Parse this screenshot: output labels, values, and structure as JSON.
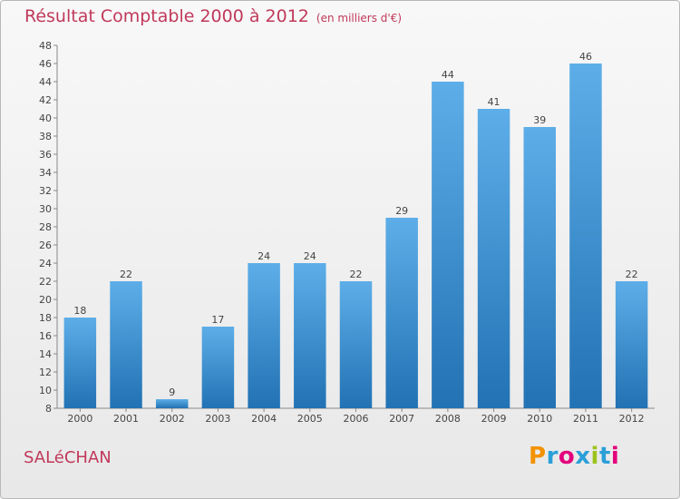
{
  "header": {
    "title": "Résultat Comptable 2000 à 2012",
    "subtitle": "(en milliers d'€)"
  },
  "footer": {
    "town": "SALéCHAN",
    "brand": "Proxiti",
    "brand_colors": [
      "#f39200",
      "#2a9fd8",
      "#e4007c",
      "#2a9fd8",
      "#9bc31c",
      "#2a9fd8",
      "#e4007c"
    ]
  },
  "colors": {
    "accent": "#c0395a",
    "bar_top": "#5daee8",
    "bar_bottom": "#2272b4"
  },
  "chart_data": {
    "type": "bar",
    "title": "Résultat Comptable 2000 à 2012",
    "xlabel": "",
    "ylabel": "(en milliers d'€)",
    "categories": [
      "2000",
      "2001",
      "2002",
      "2003",
      "2004",
      "2005",
      "2006",
      "2007",
      "2008",
      "2009",
      "2010",
      "2011",
      "2012"
    ],
    "values": [
      18,
      22,
      9,
      17,
      24,
      24,
      22,
      29,
      44,
      41,
      39,
      46,
      22
    ],
    "ylim": [
      8,
      48
    ],
    "yticks": [
      8,
      10,
      12,
      14,
      16,
      18,
      20,
      22,
      24,
      26,
      28,
      30,
      32,
      34,
      36,
      38,
      40,
      42,
      44,
      46,
      48
    ],
    "grid": false
  }
}
